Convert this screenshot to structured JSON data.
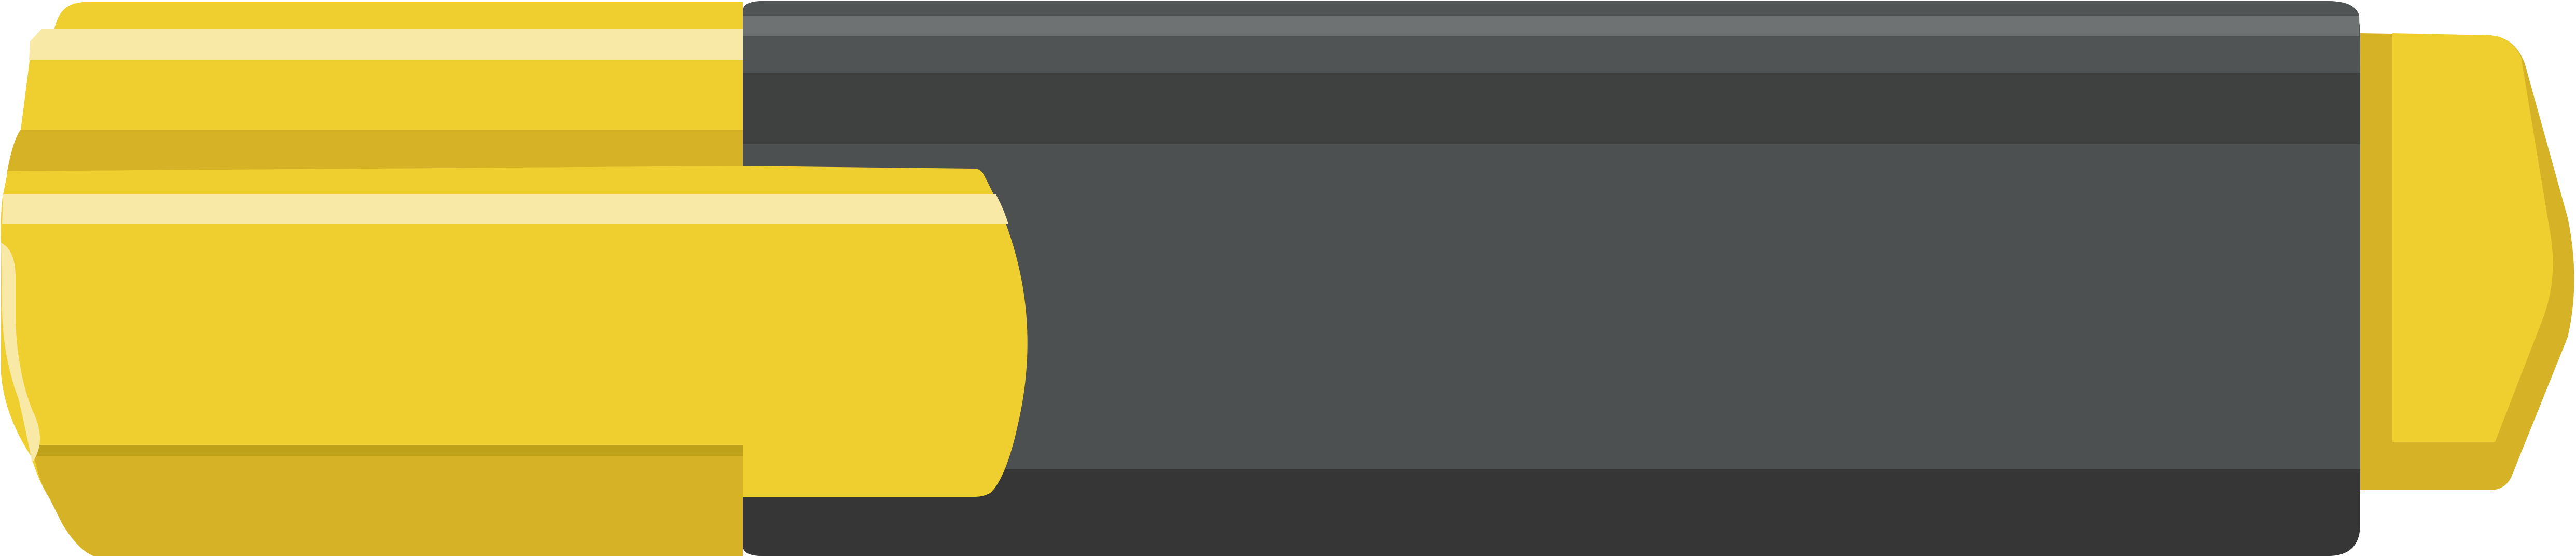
{
  "illustration": {
    "subject": "highlighter-marker-icon",
    "colors": {
      "cap_yellow": "#EFCF30",
      "cap_shadow": "#D6B326",
      "cap_dark_edge": "#BFA019",
      "cap_highlight": "#F9E9A6",
      "body_gray": "#4C5051",
      "body_gray_top": "#565A5C",
      "body_highlight": "#6E7273",
      "body_band": "#3F4140",
      "body_bottom": "#363636"
    }
  }
}
